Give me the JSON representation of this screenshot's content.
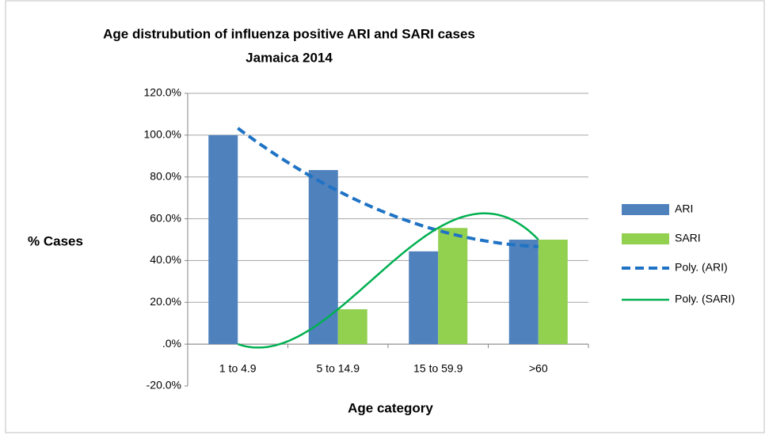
{
  "chart_data": {
    "type": "bar",
    "title": [
      "Age distrubution of influenza positive ARI and SARI cases",
      "Jamaica 2014"
    ],
    "x_label": "Age category",
    "y_label": "% Cases",
    "categories": [
      "1 to 4.9",
      "5 to 14.9",
      "15 to 59.9",
      ">60"
    ],
    "series": [
      {
        "name": "ARI",
        "color": "#4f81bd",
        "values": [
          100,
          83.3,
          44.4,
          50
        ]
      },
      {
        "name": "SARI",
        "color": "#92d050",
        "values": [
          0,
          16.7,
          55.6,
          50
        ]
      }
    ],
    "trendlines": [
      {
        "name": "Poly. (ARI)",
        "color": "#1f73c4",
        "order": 2,
        "dashed": true
      },
      {
        "name": "Poly. (SARI)",
        "color": "#00b050",
        "order": 3,
        "dashed": false
      }
    ],
    "ylim": [
      -20,
      120
    ],
    "yticks": [
      {
        "value": -20,
        "label": "-20.0%"
      },
      {
        "value": 0,
        "label": ".0%"
      },
      {
        "value": 20,
        "label": "20.0%"
      },
      {
        "value": 40,
        "label": "40.0%"
      },
      {
        "value": 60,
        "label": "60.0%"
      },
      {
        "value": 80,
        "label": "80.0%"
      },
      {
        "value": 100,
        "label": "100.0%"
      },
      {
        "value": 120,
        "label": "120.0%"
      }
    ],
    "grid": true,
    "legend": "right"
  }
}
